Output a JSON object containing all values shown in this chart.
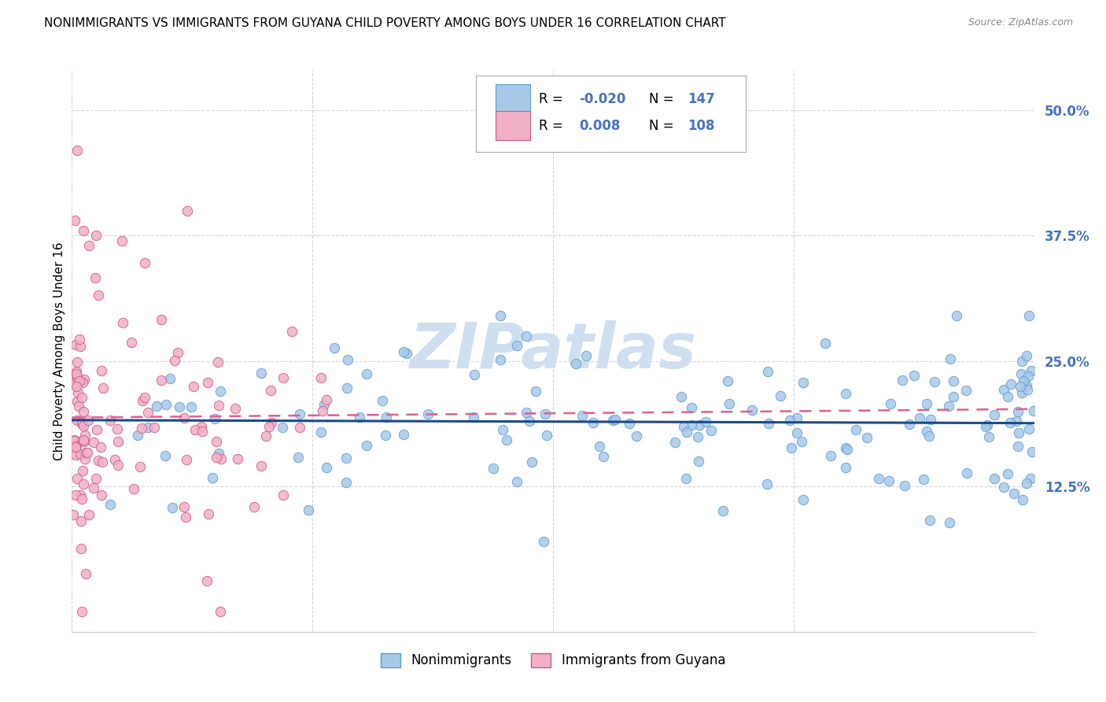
{
  "title": "NONIMMIGRANTS VS IMMIGRANTS FROM GUYANA CHILD POVERTY AMONG BOYS UNDER 16 CORRELATION CHART",
  "source": "Source: ZipAtlas.com",
  "ylabel": "Child Poverty Among Boys Under 16",
  "yticks": [
    "12.5%",
    "25.0%",
    "37.5%",
    "50.0%"
  ],
  "ytick_vals": [
    12.5,
    25.0,
    37.5,
    50.0
  ],
  "xmin": 0.0,
  "xmax": 100.0,
  "ymin": -2.0,
  "ymax": 54.0,
  "legend_nonimmigrant_R": "-0.020",
  "legend_nonimmigrant_N": "147",
  "legend_immigrant_R": "0.008",
  "legend_immigrant_N": "108",
  "nonimmigrant_color": "#a8c8e8",
  "nonimmigrant_edge": "#5b9bd5",
  "immigrant_color": "#f0b0c8",
  "immigrant_edge": "#d05880",
  "trend_nonimmigrant_color": "#1a4a8c",
  "trend_immigrant_color": "#e06090",
  "value_color": "#4472c4",
  "watermark_color": "#d0dff0",
  "background_color": "#ffffff",
  "grid_color": "#cccccc",
  "tick_label_color": "#4472c4"
}
